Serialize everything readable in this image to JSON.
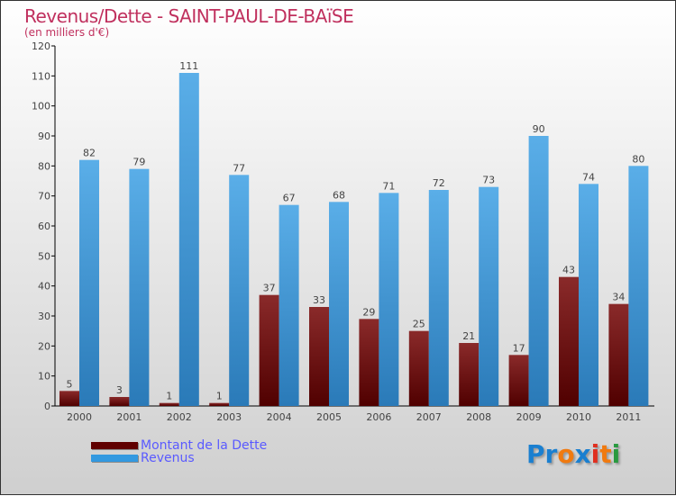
{
  "chart_data": {
    "type": "bar",
    "title": "Revenus/Dette - SAINT-PAUL-DE-BAïSE",
    "subtitle": "(en milliers d'€)",
    "categories": [
      "2000",
      "2001",
      "2002",
      "2003",
      "2004",
      "2005",
      "2006",
      "2007",
      "2008",
      "2009",
      "2010",
      "2011"
    ],
    "series": [
      {
        "name": "Montant de la Dette",
        "color": "#6b0a0a",
        "values": [
          5,
          3,
          1,
          1,
          37,
          33,
          29,
          25,
          21,
          17,
          43,
          34
        ]
      },
      {
        "name": "Revenus",
        "color": "#3a9ee0",
        "values": [
          82,
          79,
          111,
          77,
          67,
          68,
          71,
          72,
          73,
          90,
          74,
          80
        ]
      }
    ],
    "ylim": [
      0,
      120
    ],
    "yticks": [
      0,
      10,
      20,
      30,
      40,
      50,
      60,
      70,
      80,
      90,
      100,
      110,
      120
    ],
    "legend_position": "bottom-left"
  },
  "logo": {
    "letters": [
      [
        "P",
        "#1a7fd0"
      ],
      [
        "r",
        "#1a7fd0"
      ],
      [
        "o",
        "#f07a10"
      ],
      [
        "x",
        "#1a7fd0"
      ],
      [
        "i",
        "#e03020"
      ],
      [
        "t",
        "#f07a10"
      ],
      [
        "i",
        "#2a9a40"
      ]
    ]
  }
}
